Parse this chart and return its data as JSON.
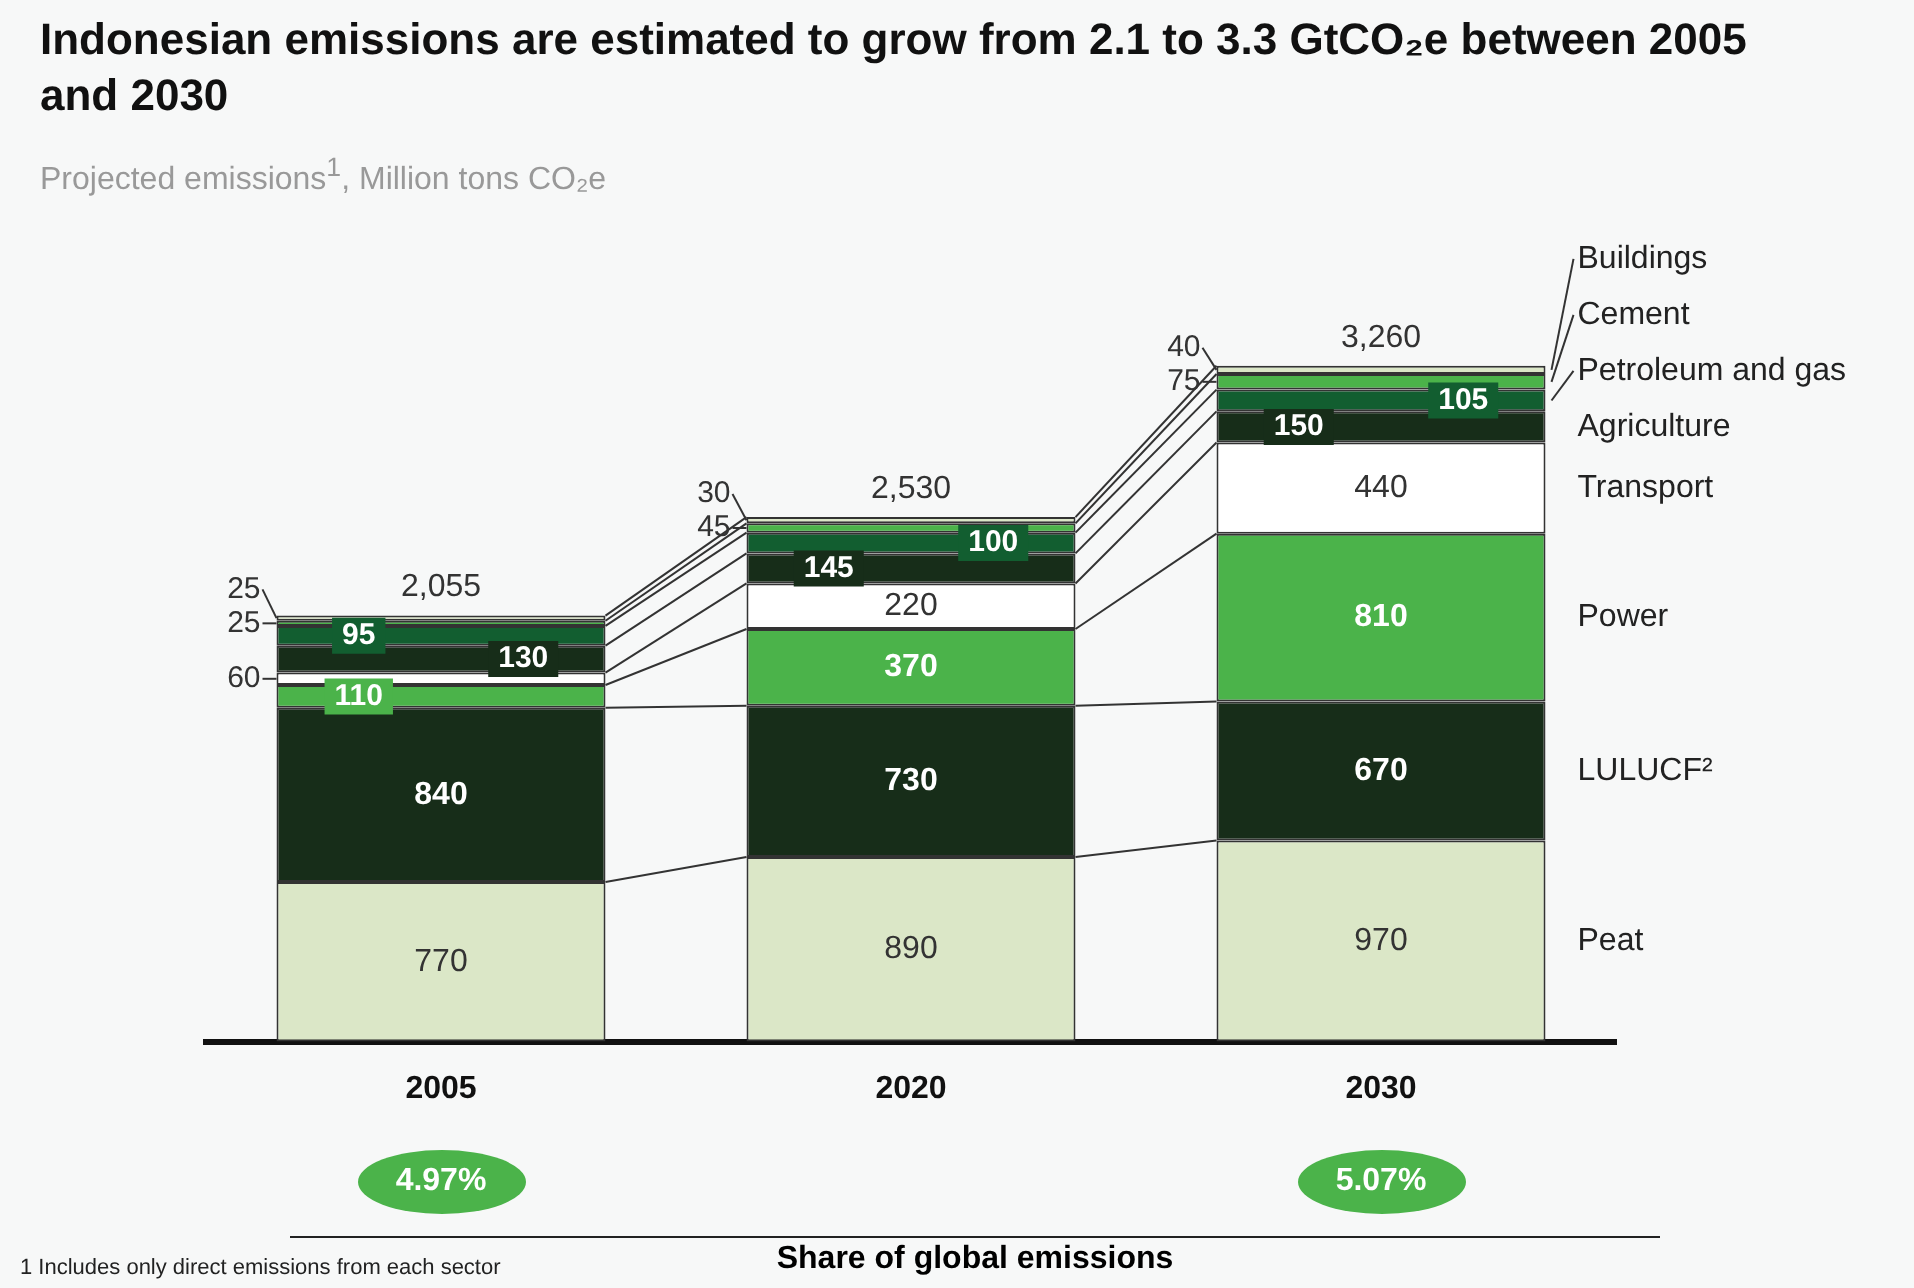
{
  "chart_data": {
    "type": "bar",
    "title": "Indonesian emissions are estimated to grow from 2.1 to 3.3 GtCO₂e between 2005 and 2030",
    "subtitle": "Projected emissions$^{1}$, Million tons CO₂e",
    "categories": [
      "2005",
      "2020",
      "2030"
    ],
    "stacked": true,
    "series": [
      {
        "name": "Peat",
        "color": "#dbe7c7",
        "values": [
          770,
          890,
          970
        ]
      },
      {
        "name": "LULUCF²",
        "color": "#172d19",
        "values": [
          840,
          730,
          670
        ]
      },
      {
        "name": "Power",
        "color": "#4bb34a",
        "values": [
          110,
          370,
          810
        ]
      },
      {
        "name": "Transport",
        "color": "#ffffff",
        "values": [
          60,
          220,
          440
        ]
      },
      {
        "name": "Agriculture",
        "color": "#172d19",
        "values": [
          130,
          145,
          150
        ]
      },
      {
        "name": "Petroleum and gas",
        "color": "#125e30",
        "values": [
          95,
          100,
          105
        ]
      },
      {
        "name": "Cement",
        "color": "#4bb34a",
        "values": [
          25,
          45,
          75
        ]
      },
      {
        "name": "Buildings",
        "color": "#dbe7c7",
        "values": [
          25,
          30,
          40
        ]
      }
    ],
    "data_labels": true,
    "totals": [
      "2,055",
      "2,530",
      "3,260"
    ],
    "annotations": [
      "4.97%",
      "5.07%",
      "Share of global emissions",
      "1 Includes only direct emissions from each sector"
    ],
    "legend": "right",
    "grid": false,
    "tick_labels": "x"
  }
}
